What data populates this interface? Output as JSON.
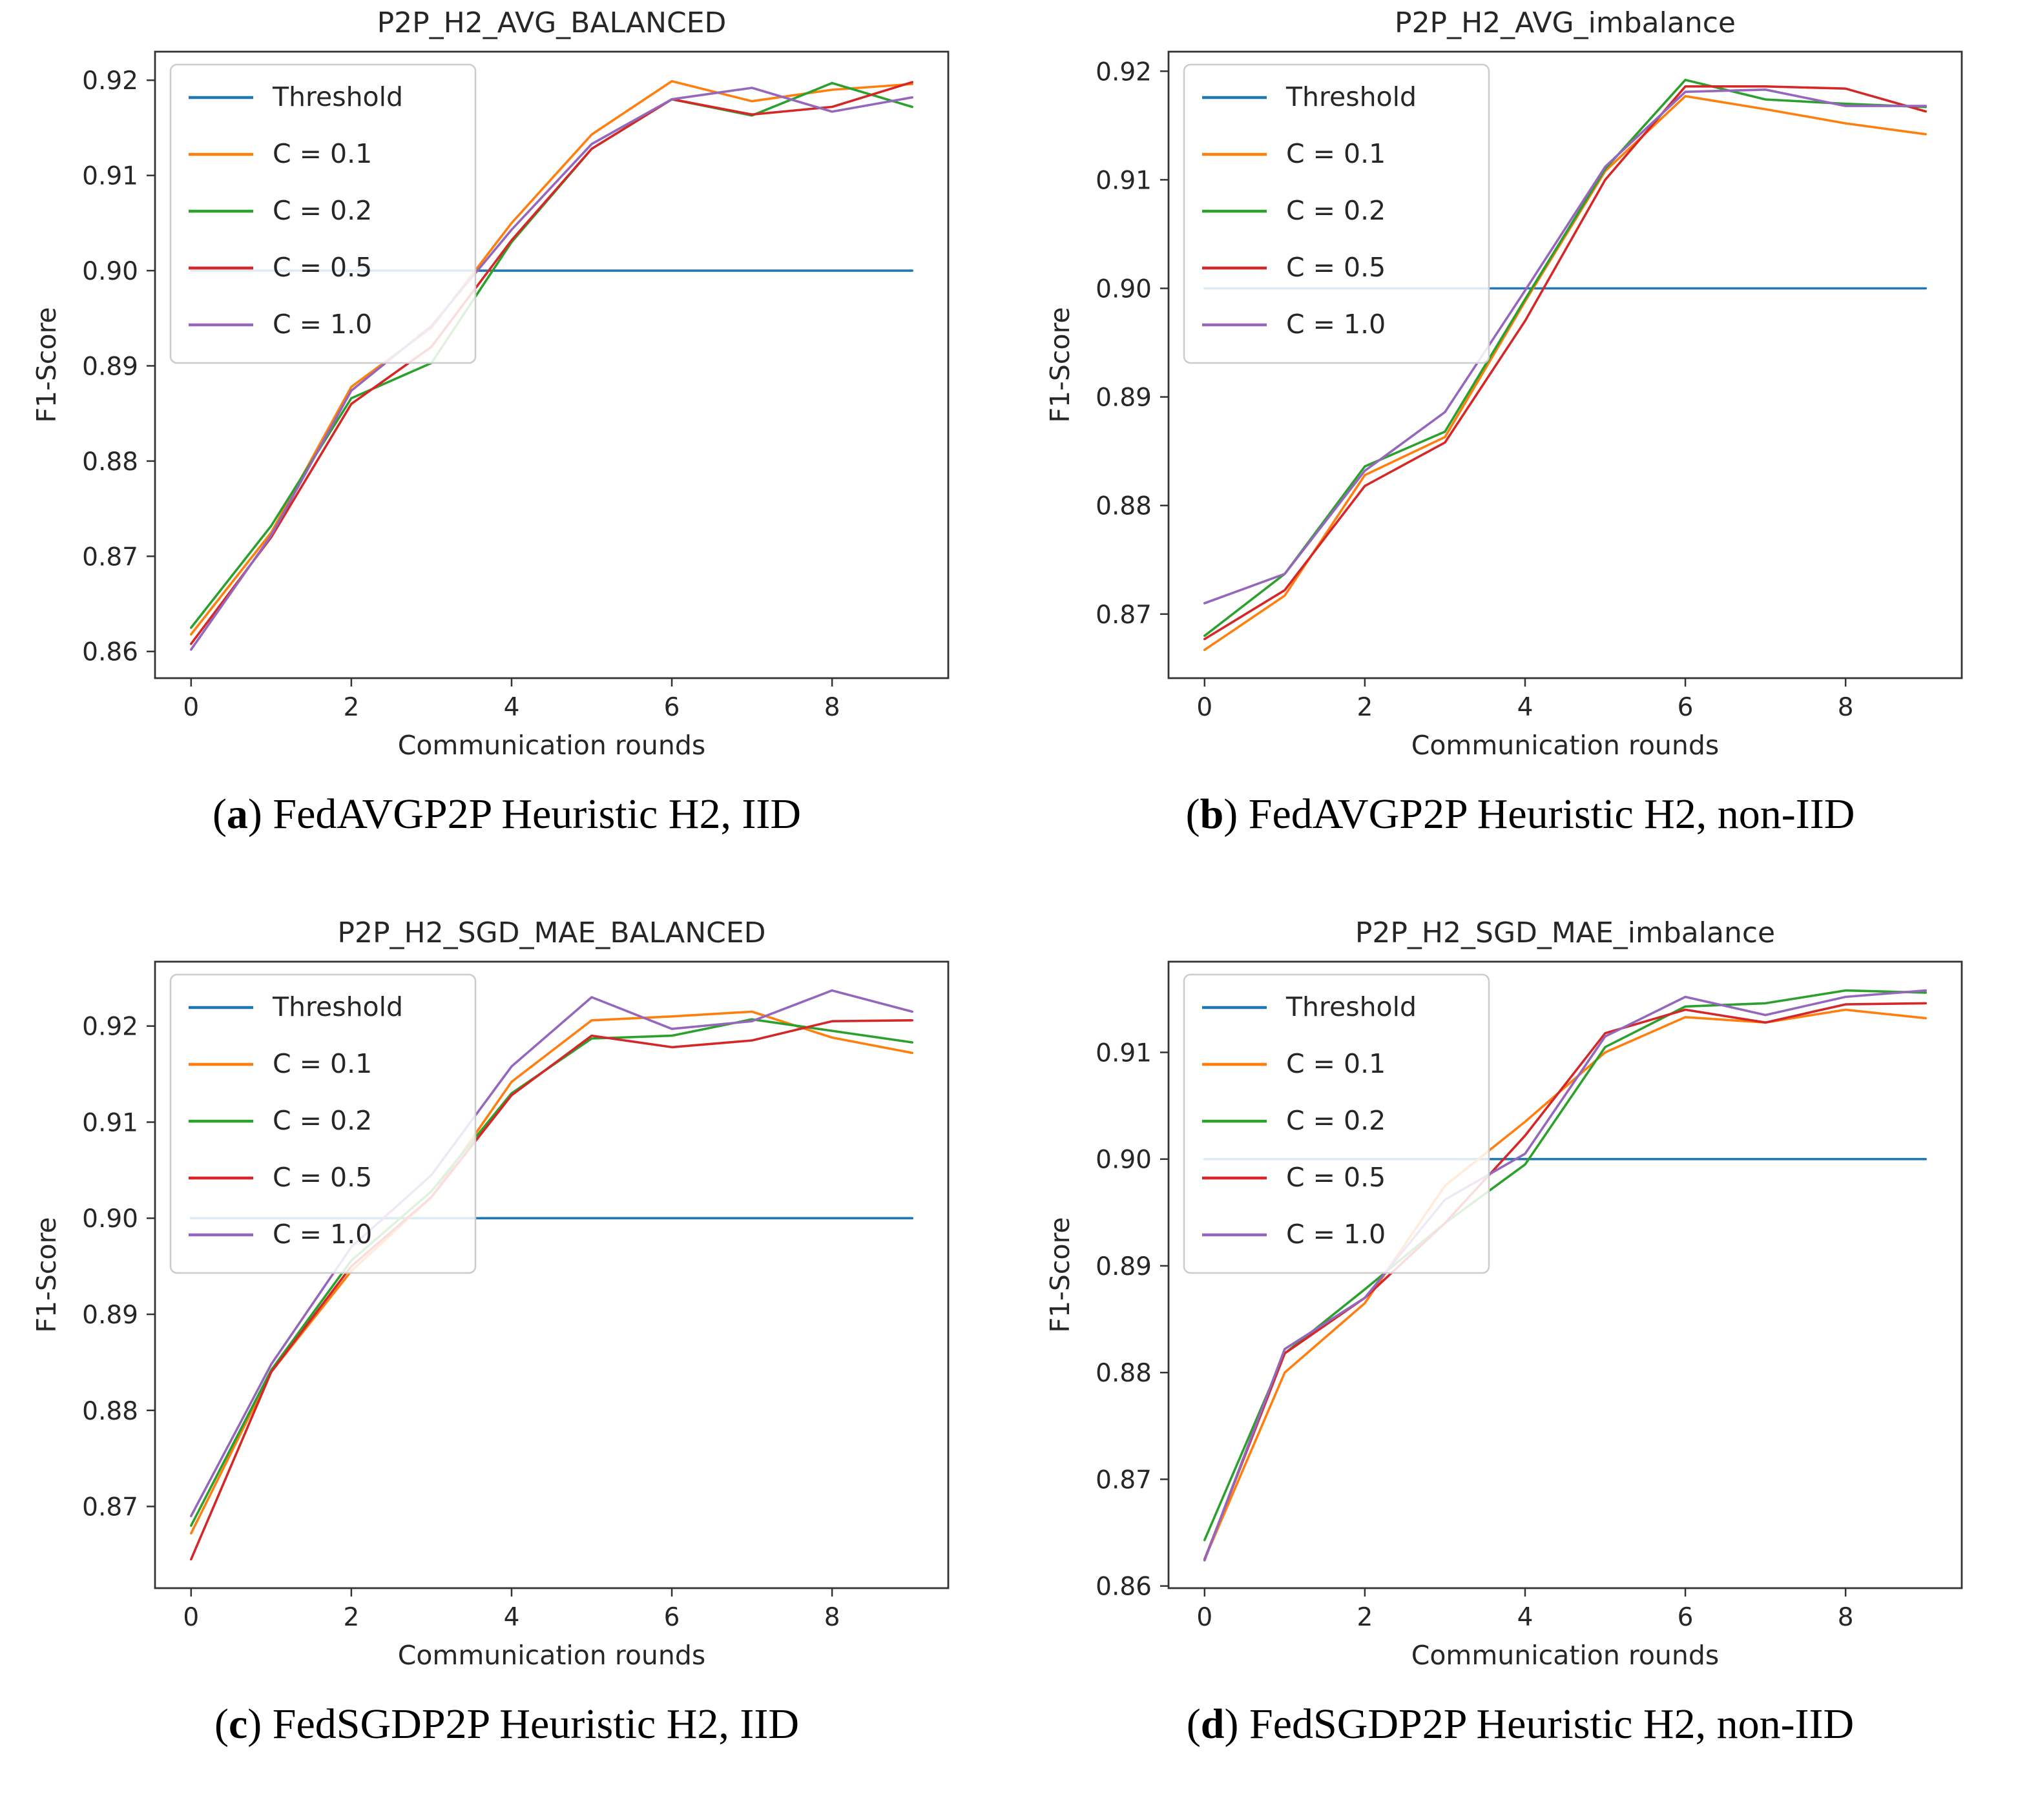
{
  "figure": {
    "background": "#ffffff",
    "text_color": "#262626",
    "axis_color": "#333333",
    "legend_border": "#cccccc",
    "threshold_value": 0.9
  },
  "chart_data": [
    {
      "id": "a",
      "type": "line",
      "title": "P2P_H2_AVG_BALANCED",
      "caption_letter": "a",
      "caption_text": "FedAVGP2P Heuristic H2, IID",
      "xlabel": "Communication rounds",
      "ylabel": "F1-Score",
      "x": [
        0,
        1,
        2,
        3,
        4,
        5,
        6,
        7,
        8,
        9
      ],
      "xticks": [
        0,
        2,
        4,
        6,
        8
      ],
      "xlim": [
        -0.45,
        9.45
      ],
      "ylim": [
        0.8572,
        0.923
      ],
      "yticks": [
        0.86,
        0.87,
        0.88,
        0.89,
        0.9,
        0.91,
        0.92
      ],
      "grid": false,
      "legend_loc": "upper left",
      "series": [
        {
          "name": "Threshold",
          "color": "#1f77b4",
          "values": [
            0.9,
            0.9,
            0.9,
            0.9,
            0.9,
            0.9,
            0.9,
            0.9,
            0.9,
            0.9
          ]
        },
        {
          "name": "C = 0.1",
          "color": "#ff7f0e",
          "values": [
            0.8618,
            0.8725,
            0.8878,
            0.894,
            0.905,
            0.9143,
            0.9199,
            0.9178,
            0.919,
            0.9196
          ]
        },
        {
          "name": "C = 0.2",
          "color": "#2ca02c",
          "values": [
            0.8625,
            0.8732,
            0.8866,
            0.8903,
            0.903,
            0.9128,
            0.918,
            0.9163,
            0.9197,
            0.9172
          ]
        },
        {
          "name": "C = 0.5",
          "color": "#d62728",
          "values": [
            0.8608,
            0.872,
            0.886,
            0.892,
            0.9032,
            0.9128,
            0.918,
            0.9164,
            0.9172,
            0.9198
          ]
        },
        {
          "name": "C = 1.0",
          "color": "#9467bd",
          "values": [
            0.8602,
            0.8722,
            0.8874,
            0.8942,
            0.9043,
            0.9133,
            0.918,
            0.9192,
            0.9167,
            0.9182
          ]
        }
      ]
    },
    {
      "id": "b",
      "type": "line",
      "title": "P2P_H2_AVG_imbalance",
      "caption_letter": "b",
      "caption_text": "FedAVGP2P Heuristic H2, non-IID",
      "xlabel": "Communication rounds",
      "ylabel": "F1-Score",
      "x": [
        0,
        1,
        2,
        3,
        4,
        5,
        6,
        7,
        8,
        9
      ],
      "xticks": [
        0,
        2,
        4,
        6,
        8
      ],
      "xlim": [
        -0.45,
        9.45
      ],
      "ylim": [
        0.8641,
        0.9218
      ],
      "yticks": [
        0.87,
        0.88,
        0.89,
        0.9,
        0.91,
        0.92
      ],
      "grid": false,
      "legend_loc": "upper left",
      "series": [
        {
          "name": "Threshold",
          "color": "#1f77b4",
          "values": [
            0.9,
            0.9,
            0.9,
            0.9,
            0.9,
            0.9,
            0.9,
            0.9,
            0.9,
            0.9
          ]
        },
        {
          "name": "C = 0.1",
          "color": "#ff7f0e",
          "values": [
            0.8667,
            0.8717,
            0.8828,
            0.8863,
            0.8988,
            0.9108,
            0.9177,
            0.9165,
            0.9152,
            0.9142
          ]
        },
        {
          "name": "C = 0.2",
          "color": "#2ca02c",
          "values": [
            0.868,
            0.8737,
            0.8836,
            0.8868,
            0.899,
            0.911,
            0.9192,
            0.9174,
            0.917,
            0.9167
          ]
        },
        {
          "name": "C = 0.5",
          "color": "#d62728",
          "values": [
            0.8677,
            0.8722,
            0.8818,
            0.8858,
            0.897,
            0.91,
            0.9186,
            0.9186,
            0.9184,
            0.9163
          ]
        },
        {
          "name": "C = 1.0",
          "color": "#9467bd",
          "values": [
            0.871,
            0.8737,
            0.8832,
            0.8886,
            0.8998,
            0.9112,
            0.9181,
            0.9183,
            0.9168,
            0.9168
          ]
        }
      ]
    },
    {
      "id": "c",
      "type": "line",
      "title": "P2P_H2_SGD_MAE_BALANCED",
      "caption_letter": "c",
      "caption_text": "FedSGDP2P Heuristic H2, IID",
      "xlabel": "Communication rounds",
      "ylabel": "F1-Score",
      "x": [
        0,
        1,
        2,
        3,
        4,
        5,
        6,
        7,
        8,
        9
      ],
      "xticks": [
        0,
        2,
        4,
        6,
        8
      ],
      "xlim": [
        -0.45,
        9.45
      ],
      "ylim": [
        0.8615,
        0.9267
      ],
      "yticks": [
        0.87,
        0.88,
        0.89,
        0.9,
        0.91,
        0.92
      ],
      "grid": false,
      "legend_loc": "upper left",
      "series": [
        {
          "name": "Threshold",
          "color": "#1f77b4",
          "values": [
            0.9,
            0.9,
            0.9,
            0.9,
            0.9,
            0.9,
            0.9,
            0.9,
            0.9,
            0.9
          ]
        },
        {
          "name": "C = 0.1",
          "color": "#ff7f0e",
          "values": [
            0.8672,
            0.884,
            0.8945,
            0.9022,
            0.9142,
            0.9206,
            0.921,
            0.9215,
            0.9188,
            0.9172
          ]
        },
        {
          "name": "C = 0.2",
          "color": "#2ca02c",
          "values": [
            0.868,
            0.8842,
            0.8956,
            0.9028,
            0.913,
            0.9187,
            0.919,
            0.9207,
            0.9195,
            0.9183
          ]
        },
        {
          "name": "C = 0.5",
          "color": "#d62728",
          "values": [
            0.8645,
            0.884,
            0.895,
            0.9022,
            0.9128,
            0.919,
            0.9178,
            0.9185,
            0.9205,
            0.9206
          ]
        },
        {
          "name": "C = 1.0",
          "color": "#9467bd",
          "values": [
            0.869,
            0.8848,
            0.897,
            0.9045,
            0.9158,
            0.923,
            0.9197,
            0.9205,
            0.9237,
            0.9215
          ]
        }
      ]
    },
    {
      "id": "d",
      "type": "line",
      "title": "P2P_H2_SGD_MAE_imbalance",
      "caption_letter": "d",
      "caption_text": "FedSGDP2P Heuristic H2, non-IID",
      "xlabel": "Communication rounds",
      "ylabel": "F1-Score",
      "x": [
        0,
        1,
        2,
        3,
        4,
        5,
        6,
        7,
        8,
        9
      ],
      "xticks": [
        0,
        2,
        4,
        6,
        8
      ],
      "xlim": [
        -0.45,
        9.45
      ],
      "ylim": [
        0.8598,
        0.9185
      ],
      "yticks": [
        0.86,
        0.87,
        0.88,
        0.89,
        0.9,
        0.91
      ],
      "grid": false,
      "legend_loc": "upper left",
      "series": [
        {
          "name": "Threshold",
          "color": "#1f77b4",
          "values": [
            0.9,
            0.9,
            0.9,
            0.9,
            0.9,
            0.9,
            0.9,
            0.9,
            0.9,
            0.9
          ]
        },
        {
          "name": "C = 0.1",
          "color": "#ff7f0e",
          "values": [
            0.8625,
            0.88,
            0.8865,
            0.8975,
            0.9035,
            0.91,
            0.9133,
            0.9128,
            0.914,
            0.9132
          ]
        },
        {
          "name": "C = 0.2",
          "color": "#2ca02c",
          "values": [
            0.8643,
            0.8818,
            0.8878,
            0.894,
            0.8995,
            0.9105,
            0.9143,
            0.9146,
            0.9158,
            0.9156
          ]
        },
        {
          "name": "C = 0.5",
          "color": "#d62728",
          "values": [
            0.8625,
            0.8818,
            0.887,
            0.894,
            0.9022,
            0.9118,
            0.914,
            0.9128,
            0.9145,
            0.9146
          ]
        },
        {
          "name": "C = 1.0",
          "color": "#9467bd",
          "values": [
            0.8624,
            0.8822,
            0.887,
            0.8962,
            0.9005,
            0.9115,
            0.9152,
            0.9135,
            0.9152,
            0.9158
          ]
        }
      ]
    }
  ]
}
